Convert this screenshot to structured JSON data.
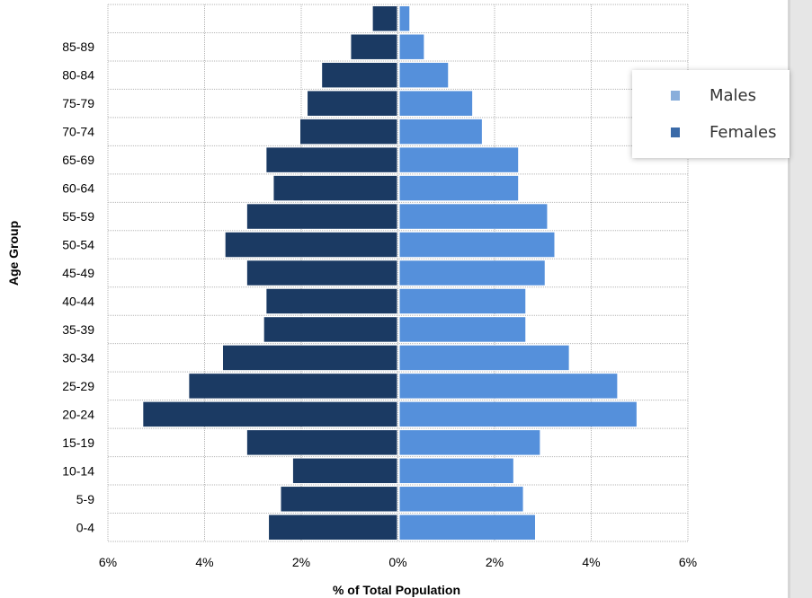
{
  "chart_data": {
    "type": "bar",
    "orientation": "horizontal",
    "subtype": "population-pyramid",
    "xlabel": "% of Total Population",
    "ylabel": "Age Group",
    "xlim": [
      -6,
      6
    ],
    "x_ticks": [
      "6%",
      "4%",
      "2%",
      "0%",
      "2%",
      "4%",
      "6%"
    ],
    "grid": true,
    "legend_position": "top-right",
    "categories": [
      "0-4",
      "5-9",
      "10-14",
      "15-19",
      "20-24",
      "25-29",
      "30-34",
      "35-39",
      "40-44",
      "45-49",
      "50-54",
      "55-59",
      "60-64",
      "65-69",
      "70-74",
      "75-79",
      "80-84",
      "85-89",
      ""
    ],
    "series": [
      {
        "name": "Males",
        "color": "#5590db",
        "legend_color": "#8aaedb",
        "values": [
          2.8,
          2.55,
          2.35,
          2.9,
          4.9,
          4.5,
          3.5,
          2.6,
          2.6,
          3.0,
          3.2,
          3.05,
          2.45,
          2.45,
          1.7,
          1.5,
          1.0,
          0.5,
          0.2
        ]
      },
      {
        "name": "Females",
        "color": "#1b3a63",
        "legend_color": "#3a6aa8",
        "values": [
          2.65,
          2.4,
          2.15,
          3.1,
          5.25,
          4.3,
          3.6,
          2.75,
          2.7,
          3.1,
          3.55,
          3.1,
          2.55,
          2.7,
          2.0,
          1.85,
          1.55,
          0.95,
          0.5
        ]
      }
    ]
  }
}
